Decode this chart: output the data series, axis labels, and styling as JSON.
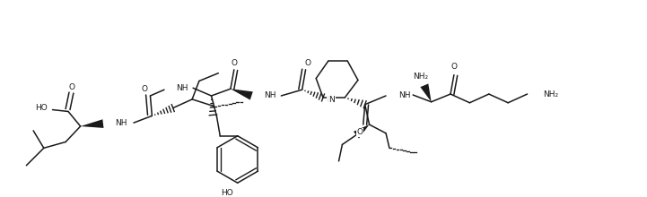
{
  "figsize": [
    7.21,
    2.2
  ],
  "dpi": 100,
  "bg": "#ffffff",
  "lc": "#1a1a1a",
  "lw": 1.1,
  "fs": 6.5,
  "xlim": [
    0,
    721
  ],
  "ylim": [
    0,
    220
  ]
}
